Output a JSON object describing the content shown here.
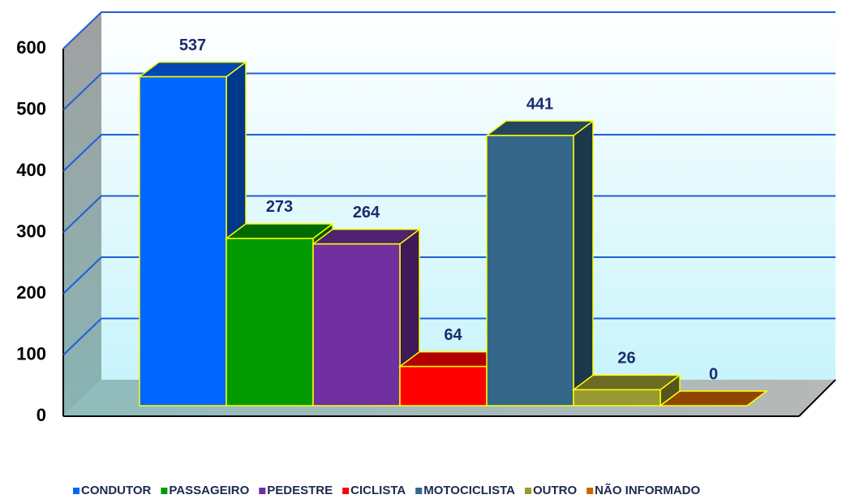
{
  "chart_data": {
    "type": "bar",
    "categories": [
      "CONDUTOR",
      "PASSAGEIRO",
      "PEDESTRE",
      "CICLISTA",
      "MOTOCICLISTA",
      "OUTRO",
      "NÃO INFORMADO"
    ],
    "values": [
      537,
      273,
      264,
      64,
      441,
      26,
      0
    ],
    "colors": [
      "#0066ff",
      "#009900",
      "#7030a0",
      "#ff0000",
      "#336688",
      "#999933",
      "#cc6600"
    ],
    "ylim": [
      0,
      600
    ],
    "yticks": [
      0,
      100,
      200,
      300,
      400,
      500,
      600
    ],
    "grid": true,
    "legend": "bottom"
  }
}
